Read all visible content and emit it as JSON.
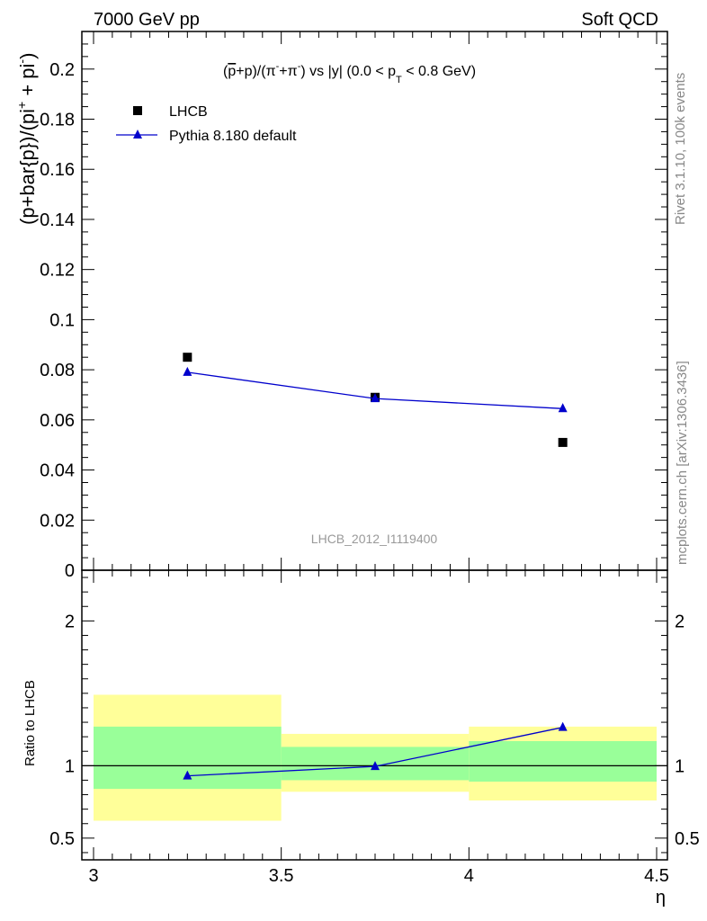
{
  "header": {
    "left_label": "7000 GeV pp",
    "right_label": "Soft QCD"
  },
  "side_labels": {
    "rivet": "Rivet 3.1.10,  100k events",
    "source": "mcplots.cern.ch [arXiv:1306.3436]"
  },
  "colors": {
    "data_marker": "#000000",
    "mc_line": "#0000cc",
    "band_inner": "#99ff99",
    "band_outer": "#ffff99",
    "axis": "#000000",
    "watermark": "#999999"
  },
  "chart_data": [
    {
      "type": "scatter",
      "title": "(p̅+p)/(π⁻+π⁻) vs |y| (0.0 < pT < 0.8 GeV)",
      "title_parts": {
        "open_paren": "(",
        "pbar": "p",
        "rest1": "+p)/(π",
        "sup1": "-",
        "rest2": "+π",
        "sup2": "-",
        "rest3": ") vs |y| (0.0 < p",
        "sub": "T",
        "rest4": " < 0.8 GeV)"
      },
      "ylabel": "(p+bar{p})/(pi⁺ + pi⁻)",
      "ylabel_parts": {
        "main": "(p+bar{p})/(pi",
        "sup1": "+",
        "mid": " + pi",
        "sup2": "-",
        "close": ")"
      },
      "watermark": "LHCB_2012_I1119400",
      "xlim": [
        3.0,
        4.5
      ],
      "ylim": [
        0.0,
        0.215
      ],
      "yticks": [
        0,
        0.02,
        0.04,
        0.06,
        0.08,
        0.1,
        0.12,
        0.14,
        0.16,
        0.18,
        0.2
      ],
      "ytick_labels": [
        "0",
        "0.02",
        "0.04",
        "0.06",
        "0.08",
        "0.1",
        "0.12",
        "0.14",
        "0.16",
        "0.18",
        "0.2"
      ],
      "legend_position": "top-left",
      "series": [
        {
          "name": "LHCB",
          "marker": "square",
          "x": [
            3.25,
            3.75,
            4.25
          ],
          "y": [
            0.085,
            0.069,
            0.051
          ]
        },
        {
          "name": "Pythia 8.180 default",
          "marker": "triangle",
          "x": [
            3.25,
            3.75,
            4.25
          ],
          "y": [
            0.079,
            0.0685,
            0.0645
          ]
        }
      ]
    },
    {
      "type": "line",
      "ylabel": "Ratio to LHCB",
      "xlabel": "η",
      "xlim": [
        3.0,
        4.5
      ],
      "ylim": [
        0.35,
        2.35
      ],
      "xticks": [
        3,
        3.5,
        4,
        4.5
      ],
      "xtick_labels": [
        "3",
        "3.5",
        "4",
        "4.5"
      ],
      "yticks": [
        0.5,
        1,
        2
      ],
      "ytick_labels": [
        "0.5",
        "1",
        "2"
      ],
      "reference_line": 1.0,
      "bands": [
        {
          "x_low": 3.0,
          "x_high": 3.5,
          "inner": [
            0.84,
            1.27
          ],
          "outer": [
            0.62,
            1.49
          ]
        },
        {
          "x_low": 3.5,
          "x_high": 4.0,
          "inner": [
            0.9,
            1.13
          ],
          "outer": [
            0.82,
            1.22
          ]
        },
        {
          "x_low": 4.0,
          "x_high": 4.5,
          "inner": [
            0.89,
            1.17
          ],
          "outer": [
            0.76,
            1.27
          ]
        }
      ],
      "series": [
        {
          "name": "Pythia 8.180 default",
          "marker": "triangle",
          "x": [
            3.25,
            3.75,
            4.25
          ],
          "y": [
            0.93,
            0.995,
            1.265
          ]
        }
      ]
    }
  ]
}
